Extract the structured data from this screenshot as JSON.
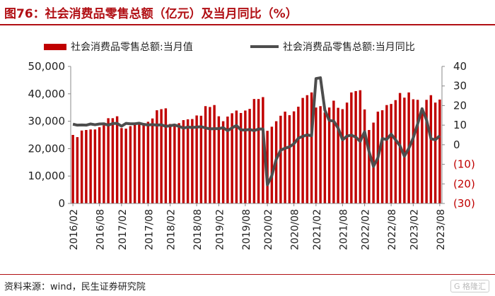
{
  "title": "图76：社会消费品零售总额（亿元）及当月同比（%）",
  "source": "资料来源：wind，民生证券研究院",
  "colors": {
    "accent": "#b10f14",
    "bar": "#c00000",
    "line": "#4d4d4d",
    "negative_tick": "#c00000"
  },
  "chart_data": {
    "type": "bar+line",
    "categories": [
      "2016/02",
      "2016/03",
      "2016/04",
      "2016/05",
      "2016/06",
      "2016/07",
      "2016/08",
      "2016/09",
      "2016/10",
      "2016/11",
      "2016/12",
      "2017/02",
      "2017/03",
      "2017/04",
      "2017/05",
      "2017/06",
      "2017/07",
      "2017/08",
      "2017/09",
      "2017/10",
      "2017/11",
      "2017/12",
      "2018/02",
      "2018/03",
      "2018/04",
      "2018/05",
      "2018/06",
      "2018/07",
      "2018/08",
      "2018/09",
      "2018/10",
      "2018/11",
      "2018/12",
      "2019/02",
      "2019/03",
      "2019/04",
      "2019/05",
      "2019/06",
      "2019/07",
      "2019/08",
      "2019/09",
      "2019/10",
      "2019/11",
      "2019/12",
      "2020/02",
      "2020/03",
      "2020/04",
      "2020/05",
      "2020/06",
      "2020/07",
      "2020/08",
      "2020/09",
      "2020/10",
      "2020/11",
      "2020/12",
      "2021/02",
      "2021/03",
      "2021/04",
      "2021/05",
      "2021/06",
      "2021/07",
      "2021/08",
      "2021/09",
      "2021/10",
      "2021/11",
      "2021/12",
      "2022/02",
      "2022/03",
      "2022/04",
      "2022/05",
      "2022/06",
      "2022/07",
      "2022/08",
      "2022/09",
      "2022/10",
      "2022/11",
      "2022/12",
      "2023/02",
      "2023/03",
      "2023/04",
      "2023/05",
      "2023/06",
      "2023/07",
      "2023/08"
    ],
    "x_tick_labels": [
      "2016/02",
      "2016/08",
      "2017/02",
      "2017/08",
      "2018/02",
      "2018/08",
      "2019/02",
      "2019/08",
      "2020/02",
      "2020/08",
      "2021/02",
      "2021/08",
      "2022/02",
      "2022/08",
      "2023/02",
      "2023/08"
    ],
    "series": [
      {
        "name": "社会消费品零售总额:当月值",
        "type": "bar",
        "axis": "left",
        "values": [
          25000,
          24200,
          26600,
          26800,
          27000,
          27000,
          27800,
          28500,
          31100,
          31100,
          31800,
          27500,
          27300,
          28200,
          29500,
          29100,
          29100,
          29800,
          31000,
          34000,
          34400,
          34700,
          29000,
          28500,
          29300,
          30400,
          30700,
          30800,
          32100,
          32000,
          35500,
          35200,
          35900,
          31800,
          30000,
          31700,
          32900,
          33900,
          33000,
          33900,
          34500,
          38100,
          38100,
          38800,
          26500,
          28000,
          30000,
          32000,
          33500,
          32200,
          33600,
          35300,
          38500,
          39500,
          40500,
          35000,
          35500,
          33200,
          35000,
          37500,
          34900,
          34400,
          36800,
          40500,
          41000,
          41300,
          34300,
          26800,
          29500,
          33500,
          34000,
          35900,
          36300,
          37700,
          40300,
          38600,
          40500,
          38000,
          37800,
          34900,
          37800,
          39500,
          36800,
          37900
        ]
      },
      {
        "name": "社会消费品零售总额:当月同比",
        "type": "line",
        "axis": "right",
        "values": [
          10.5,
          10.0,
          10.1,
          10.0,
          10.6,
          10.2,
          10.6,
          10.7,
          10.0,
          10.8,
          10.9,
          9.5,
          10.9,
          10.7,
          10.7,
          11.0,
          10.4,
          10.1,
          10.3,
          10.0,
          10.2,
          9.4,
          9.7,
          10.1,
          9.4,
          8.5,
          9.0,
          8.8,
          9.0,
          9.2,
          8.6,
          8.1,
          8.2,
          8.2,
          8.7,
          7.2,
          8.6,
          9.8,
          7.6,
          7.5,
          7.8,
          7.2,
          8.0,
          8.0,
          -20.5,
          -15.8,
          -7.5,
          -2.8,
          -1.8,
          -1.1,
          0.5,
          3.3,
          4.3,
          5.0,
          4.6,
          33.8,
          34.2,
          17.7,
          12.4,
          12.1,
          8.5,
          2.5,
          4.4,
          4.9,
          3.9,
          1.7,
          6.7,
          -3.5,
          -11.1,
          -6.7,
          3.1,
          2.7,
          5.4,
          2.5,
          -0.5,
          -5.9,
          -1.8,
          3.5,
          10.6,
          18.4,
          12.7,
          3.1,
          2.5,
          4.6
        ]
      }
    ],
    "y_left": {
      "ylim": [
        0,
        50000
      ],
      "ticks": [
        0,
        10000,
        20000,
        30000,
        40000,
        50000
      ],
      "tick_labels": [
        "0",
        "10,000",
        "20,000",
        "30,000",
        "40,000",
        "50,000"
      ]
    },
    "y_right": {
      "ylim": [
        -30,
        40
      ],
      "ticks": [
        -30,
        -20,
        -10,
        0,
        10,
        20,
        30,
        40
      ],
      "tick_labels": [
        "(30)",
        "(20)",
        "(10)",
        "0",
        "10",
        "20",
        "30",
        "40"
      ]
    },
    "grid": false,
    "legend": "top"
  }
}
